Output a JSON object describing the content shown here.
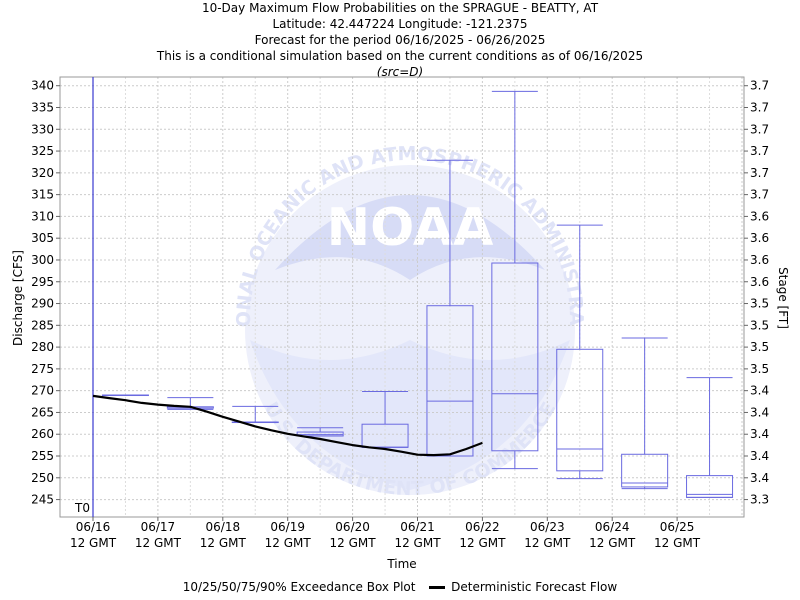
{
  "header": {
    "title": "10-Day Maximum Flow Probabilities on the SPRAGUE - BEATTY, AT",
    "location": "Latitude: 42.447224 Longitude: -121.2375",
    "period": "Forecast for the period 06/16/2025 - 06/26/2025",
    "condition": "This is a conditional simulation based on the current conditions as of 06/16/2025",
    "source": "(src=D)"
  },
  "legend": {
    "box_label": "10/25/50/75/90% Exceedance Box Plot",
    "line_label": "Deterministic Forecast Flow"
  },
  "watermark": {
    "logo_text": "NOAA",
    "ring_text_top": "NATIONAL OCEANIC AND ATMOSPHERIC ADMINISTRATION",
    "ring_text_bottom": "U.S. DEPARTMENT OF COMMERCE"
  },
  "colors": {
    "box": "#6a6ae0",
    "t0_line": "#3a3ad0",
    "forecast_line": "#000000",
    "grid": "#cccccc",
    "watermark": "#dde2f8"
  },
  "chart_data": {
    "type": "box",
    "xlabel": "Time",
    "ylabel": "Discharge [CFS]",
    "y2label": "Stage [FT]",
    "ylim": [
      241,
      342
    ],
    "grid": true,
    "x_ticks": [
      {
        "line1": "06/16",
        "line2": "12 GMT"
      },
      {
        "line1": "06/17",
        "line2": "12 GMT"
      },
      {
        "line1": "06/18",
        "line2": "12 GMT"
      },
      {
        "line1": "06/19",
        "line2": "12 GMT"
      },
      {
        "line1": "06/20",
        "line2": "12 GMT"
      },
      {
        "line1": "06/21",
        "line2": "12 GMT"
      },
      {
        "line1": "06/22",
        "line2": "12 GMT"
      },
      {
        "line1": "06/23",
        "line2": "12 GMT"
      },
      {
        "line1": "06/24",
        "line2": "12 GMT"
      },
      {
        "line1": "06/25",
        "line2": "12 GMT"
      }
    ],
    "y_ticks": [
      245,
      250,
      255,
      260,
      265,
      270,
      275,
      280,
      285,
      290,
      295,
      300,
      305,
      310,
      315,
      320,
      325,
      330,
      335,
      340
    ],
    "y2_ticks": [
      "3.3",
      "3.4",
      "3.4",
      "3.4",
      "3.4",
      "3.4",
      "3.5",
      "3.5",
      "3.5",
      "3.5",
      "3.6",
      "3.6",
      "3.6",
      "3.6",
      "3.7",
      "3.7",
      "3.7",
      "3.7",
      "3.7",
      "3.7"
    ],
    "t0_label": "T0",
    "boxes": [
      {
        "x": 0.5,
        "p10": 269.0,
        "p25": 269.0,
        "p50": 269.0,
        "p75": 269.0,
        "p90": 269.0
      },
      {
        "x": 1.5,
        "p10": 265.7,
        "p25": 266.0,
        "p50": 266.0,
        "p75": 266.3,
        "p90": 268.4
      },
      {
        "x": 2.5,
        "p10": 262.8,
        "p25": 262.8,
        "p50": 262.8,
        "p75": 262.8,
        "p90": 266.4
      },
      {
        "x": 3.5,
        "p10": 259.6,
        "p25": 259.6,
        "p50": 259.9,
        "p75": 260.5,
        "p90": 261.5
      },
      {
        "x": 4.5,
        "p10": 257.0,
        "p25": 257.0,
        "p50": 257.0,
        "p75": 262.3,
        "p90": 269.8
      },
      {
        "x": 5.5,
        "p10": 255.0,
        "p25": 255.0,
        "p50": 267.6,
        "p75": 289.5,
        "p90": 322.9
      },
      {
        "x": 6.5,
        "p10": 252.1,
        "p25": 256.2,
        "p50": 269.3,
        "p75": 299.3,
        "p90": 338.7
      },
      {
        "x": 7.5,
        "p10": 249.8,
        "p25": 251.6,
        "p50": 256.6,
        "p75": 279.5,
        "p90": 308.0
      },
      {
        "x": 8.5,
        "p10": 247.5,
        "p25": 247.9,
        "p50": 248.8,
        "p75": 255.4,
        "p90": 282.1
      },
      {
        "x": 9.5,
        "p10": 245.5,
        "p25": 245.5,
        "p50": 246.2,
        "p75": 250.5,
        "p90": 273.0
      }
    ],
    "series": [
      {
        "name": "Deterministic Forecast Flow",
        "x": [
          0,
          0.25,
          0.5,
          0.75,
          1.0,
          1.25,
          1.5,
          1.75,
          2.0,
          2.25,
          2.5,
          2.75,
          3.0,
          3.25,
          3.5,
          3.75,
          4.0,
          4.25,
          4.5,
          4.75,
          5.0,
          5.25,
          5.5,
          5.75,
          6.0
        ],
        "y": [
          268.8,
          268.3,
          267.8,
          267.2,
          266.8,
          266.5,
          266.3,
          265.2,
          264.0,
          262.9,
          261.8,
          260.9,
          260.1,
          259.5,
          258.9,
          258.2,
          257.5,
          257.0,
          256.6,
          256.0,
          255.3,
          255.2,
          255.4,
          256.6,
          258.0
        ]
      }
    ]
  }
}
